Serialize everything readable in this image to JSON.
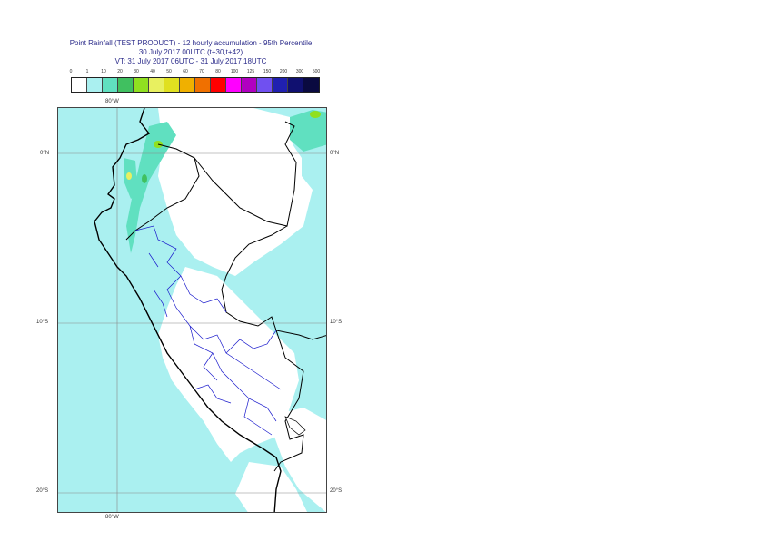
{
  "title": {
    "line1": "Point Rainfall (TEST PRODUCT) - 12 hourly accumulation - 95th Percentile",
    "line2": "30 July 2017 00UTC (t+30,t+42)",
    "line3": "VT: 31 July 2017 06UTC - 31 July 2017 18UTC"
  },
  "legend": {
    "ticks": [
      "0",
      "1",
      "10",
      "20",
      "30",
      "40",
      "50",
      "60",
      "70",
      "80",
      "100",
      "125",
      "150",
      "200",
      "300",
      "500"
    ],
    "colors": [
      "#ffffff",
      "#aaf0f0",
      "#60e0c0",
      "#40c060",
      "#90e020",
      "#e8f060",
      "#e0e020",
      "#f0b000",
      "#f07000",
      "#ff0000",
      "#ff00ff",
      "#b000c0",
      "#7050f0",
      "#2020b0",
      "#101070",
      "#0a0a40"
    ]
  },
  "map": {
    "lat_labels": [
      "0°N",
      "10°S",
      "20°S"
    ],
    "lon_label_top": "80°W",
    "lon_label_bottom": "80°W",
    "colors": {
      "ocean_land_rain": "#aaf0f0",
      "rain_mid": "#60e0c0",
      "rain_high": "#90e020",
      "coast": "#000000",
      "borders": "#1a1acc",
      "grid": "#888888"
    }
  }
}
